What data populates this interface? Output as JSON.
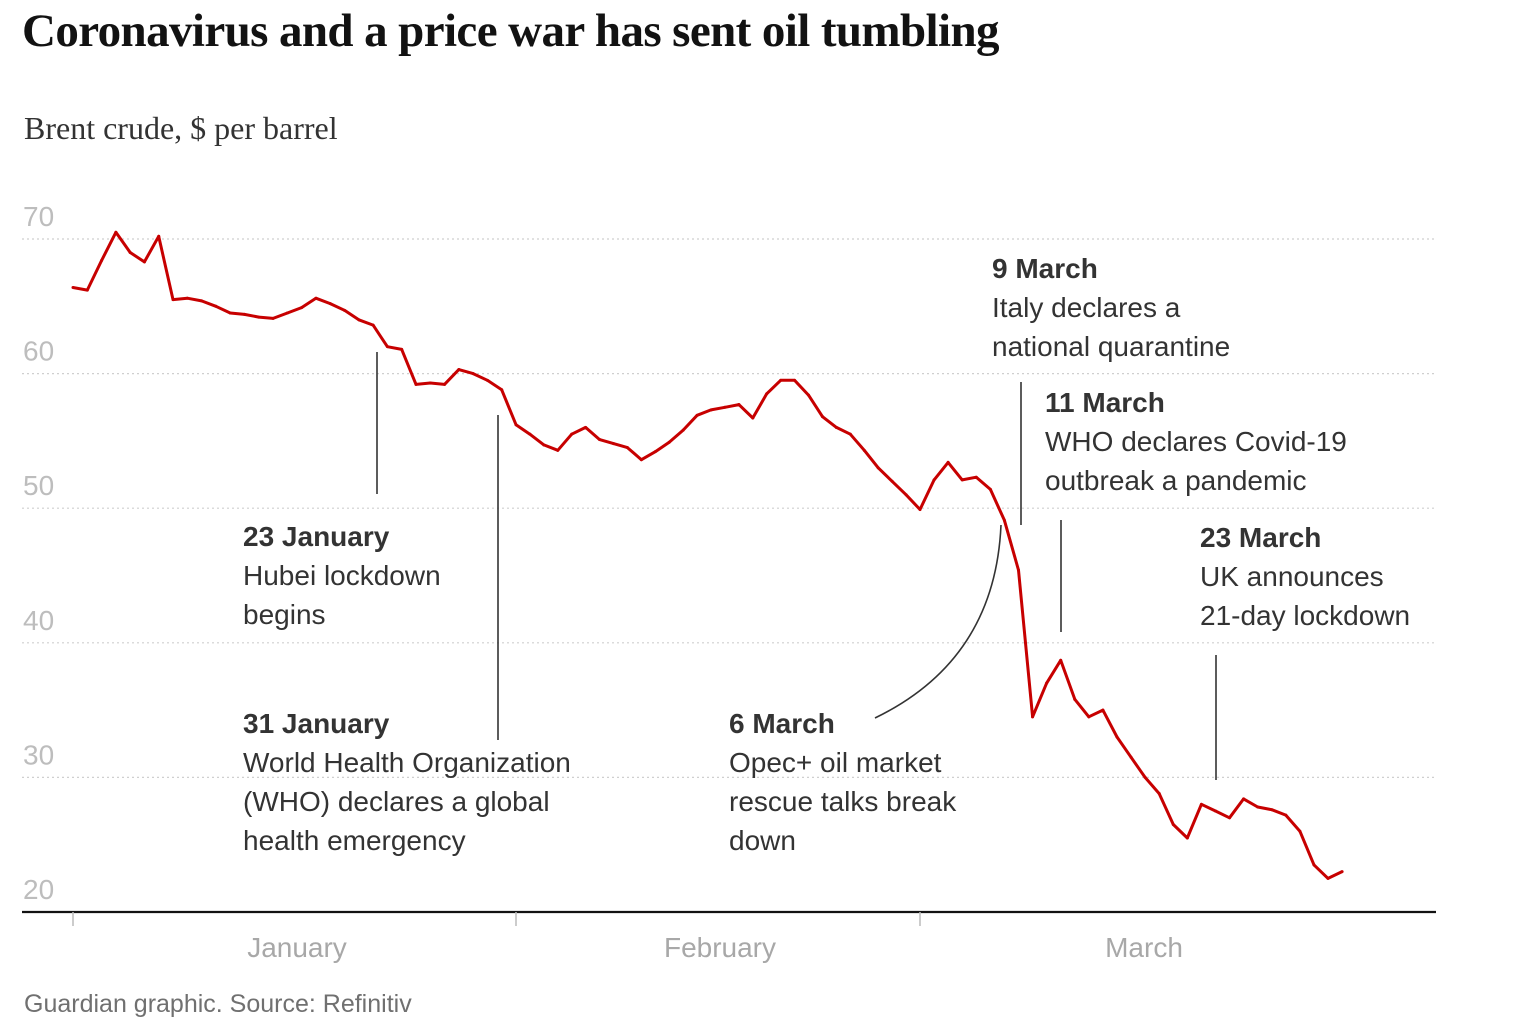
{
  "colors": {
    "line": "#c70000",
    "text": "#333333",
    "grid": "#cfcfcf"
  },
  "chart_data": {
    "type": "line",
    "title": "Coronavirus and a price war has sent oil tumbling",
    "subtitle": "Brent crude, $ per barrel",
    "ylim": [
      20,
      70
    ],
    "yticks": [
      "70",
      "60",
      "50",
      "40",
      "30",
      "20"
    ],
    "xticks": [
      "January",
      "February",
      "March"
    ],
    "grid": true,
    "x": [
      "2020-01-01",
      "2020-01-02",
      "2020-01-03",
      "2020-01-04",
      "2020-01-05",
      "2020-01-06",
      "2020-01-07",
      "2020-01-08",
      "2020-01-09",
      "2020-01-10",
      "2020-01-11",
      "2020-01-12",
      "2020-01-13",
      "2020-01-14",
      "2020-01-15",
      "2020-01-16",
      "2020-01-17",
      "2020-01-18",
      "2020-01-19",
      "2020-01-20",
      "2020-01-21",
      "2020-01-22",
      "2020-01-23",
      "2020-01-24",
      "2020-01-25",
      "2020-01-26",
      "2020-01-27",
      "2020-01-28",
      "2020-01-29",
      "2020-01-30",
      "2020-01-31",
      "2020-02-01",
      "2020-02-02",
      "2020-02-03",
      "2020-02-04",
      "2020-02-05",
      "2020-02-06",
      "2020-02-07",
      "2020-02-08",
      "2020-02-09",
      "2020-02-10",
      "2020-02-11",
      "2020-02-12",
      "2020-02-13",
      "2020-02-14",
      "2020-02-15",
      "2020-02-16",
      "2020-02-17",
      "2020-02-18",
      "2020-02-19",
      "2020-02-20",
      "2020-02-21",
      "2020-02-22",
      "2020-02-23",
      "2020-02-24",
      "2020-02-25",
      "2020-02-26",
      "2020-02-27",
      "2020-02-28",
      "2020-02-29",
      "2020-03-01",
      "2020-03-02",
      "2020-03-03",
      "2020-03-04",
      "2020-03-05",
      "2020-03-06",
      "2020-03-07",
      "2020-03-08",
      "2020-03-09",
      "2020-03-10",
      "2020-03-11",
      "2020-03-12",
      "2020-03-13",
      "2020-03-14",
      "2020-03-15",
      "2020-03-16",
      "2020-03-17",
      "2020-03-18",
      "2020-03-19",
      "2020-03-20",
      "2020-03-21",
      "2020-03-22",
      "2020-03-23",
      "2020-03-24",
      "2020-03-25",
      "2020-03-26",
      "2020-03-27",
      "2020-03-28",
      "2020-03-29",
      "2020-03-30",
      "2020-03-31"
    ],
    "series": [
      {
        "values": [
          66.4,
          66.2,
          68.4,
          70.5,
          69.0,
          68.3,
          70.2,
          65.5,
          65.6,
          65.4,
          65.0,
          64.5,
          64.4,
          64.2,
          64.1,
          64.5,
          64.9,
          65.6,
          65.2,
          64.7,
          64.0,
          63.6,
          62.0,
          61.8,
          59.2,
          59.3,
          59.2,
          60.3,
          60.0,
          59.5,
          58.8,
          56.2,
          55.5,
          54.7,
          54.3,
          55.5,
          56.0,
          55.1,
          54.8,
          54.5,
          53.6,
          54.2,
          54.9,
          55.8,
          56.9,
          57.3,
          57.5,
          57.7,
          56.7,
          58.5,
          59.5,
          59.5,
          58.4,
          56.8,
          56.0,
          55.5,
          54.3,
          53.0,
          52.0,
          51.0,
          49.9,
          52.1,
          53.4,
          52.1,
          52.3,
          51.4,
          49.1,
          45.4,
          34.5,
          37.0,
          38.7,
          35.8,
          34.5,
          35.0,
          33.0,
          31.5,
          30.0,
          28.8,
          26.5,
          25.5,
          28.0,
          27.5,
          27.0,
          28.4,
          27.8,
          27.6,
          27.2,
          26.0,
          23.5,
          22.5,
          23.0
        ]
      }
    ],
    "annotations": [
      {
        "date": "23 January",
        "lines": [
          "Hubei lockdown",
          "begins"
        ]
      },
      {
        "date": "31 January",
        "lines": [
          "World Health Organization",
          "(WHO) declares a global",
          "health emergency"
        ]
      },
      {
        "date": "6 March",
        "lines": [
          "Opec+ oil market",
          "rescue talks break",
          "down"
        ]
      },
      {
        "date": "9 March",
        "lines": [
          "Italy declares a",
          "national quarantine"
        ]
      },
      {
        "date": "11 March",
        "lines": [
          "WHO declares Covid-19",
          "outbreak a pandemic"
        ]
      },
      {
        "date": "23 March",
        "lines": [
          "UK announces",
          "21-day lockdown"
        ]
      }
    ],
    "source": "Guardian graphic. Source: Refinitiv"
  }
}
